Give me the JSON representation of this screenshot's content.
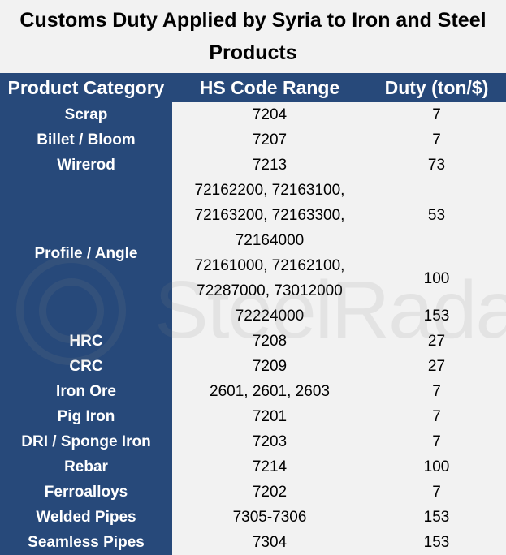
{
  "title": "Customs Duty Applied by Syria to Iron and Steel Products",
  "watermark": "SteelRadar",
  "columns": [
    "Product Category",
    "HS Code Range",
    "Duty (ton/$)"
  ],
  "rows": [
    {
      "category": "Scrap",
      "hs": "7204",
      "duty": "7"
    },
    {
      "category": "Billet / Bloom",
      "hs": "7207",
      "duty": "7"
    },
    {
      "category": "Wirerod",
      "hs": "7213",
      "duty": "73"
    },
    {
      "category": "Profile / Angle",
      "sub": [
        {
          "hs": "72162200, 72163100, 72163200, 72163300, 72164000",
          "duty": "53"
        },
        {
          "hs": "72161000, 72162100, 72287000, 73012000",
          "duty": "100"
        },
        {
          "hs": "72224000",
          "duty": "153"
        }
      ]
    },
    {
      "category": "HRC",
      "hs": "7208",
      "duty": "27"
    },
    {
      "category": "CRC",
      "hs": "7209",
      "duty": "27"
    },
    {
      "category": "Iron Ore",
      "hs": "2601, 2601, 2603",
      "duty": "7"
    },
    {
      "category": "Pig Iron",
      "hs": "7201",
      "duty": "7"
    },
    {
      "category": "DRI / Sponge Iron",
      "hs": "7203",
      "duty": "7"
    },
    {
      "category": "Rebar",
      "hs": "7214",
      "duty": "100"
    },
    {
      "category": "Ferroalloys",
      "hs": "7202",
      "duty": "7"
    },
    {
      "category": "Welded Pipes",
      "hs": "7305-7306",
      "duty": "153"
    },
    {
      "category": "Seamless Pipes",
      "hs": "7304",
      "duty": "153"
    }
  ],
  "colors": {
    "header_bg": "#27497a",
    "body_bg": "#f2f2f2"
  }
}
